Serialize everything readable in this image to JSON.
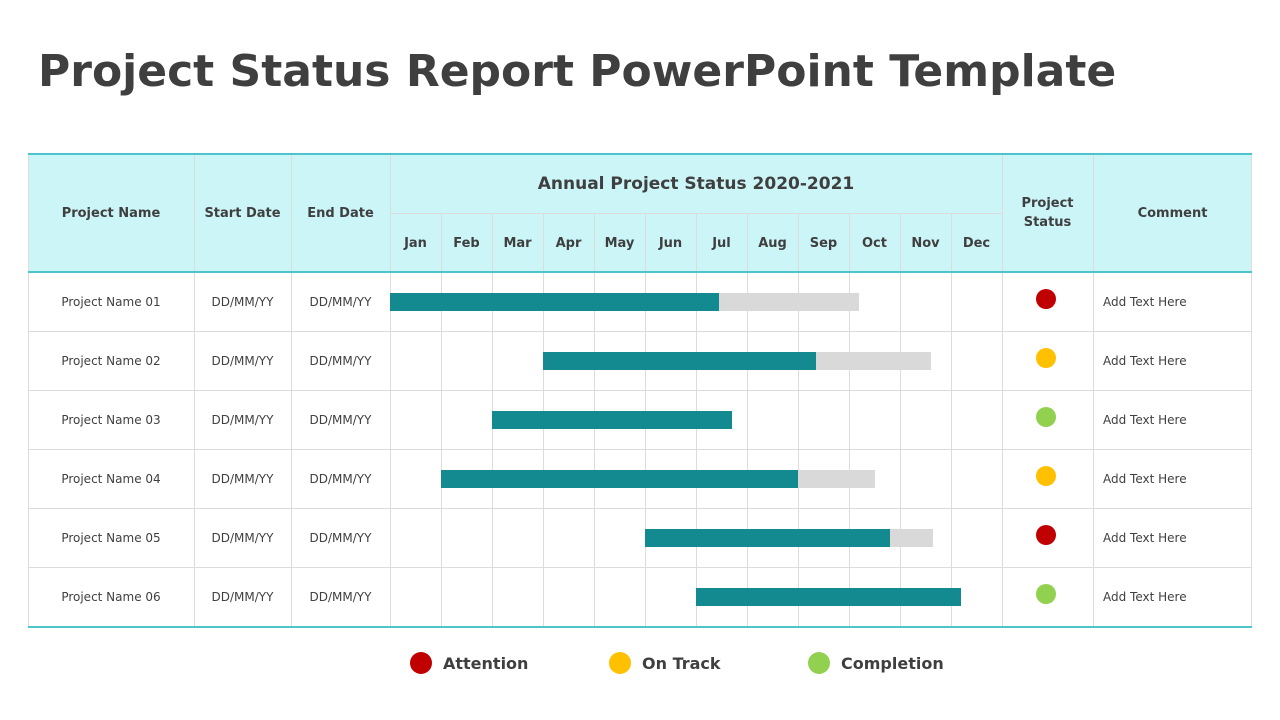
{
  "title": "Project Status Report PowerPoint Template",
  "table": {
    "headers": {
      "project_name": "Project Name",
      "start_date": "Start Date",
      "end_date": "End Date",
      "annual": "Annual Project Status 2020-2021",
      "status_line1": "Project",
      "status_line2": "Status",
      "comment": "Comment"
    },
    "months": [
      "Jan",
      "Feb",
      "Mar",
      "Apr",
      "May",
      "Jun",
      "Jul",
      "Aug",
      "Sep",
      "Oct",
      "Nov",
      "Dec"
    ],
    "rows": [
      {
        "name": "Project Name 01",
        "start": "DD/MM/YY",
        "end": "DD/MM/YY",
        "status": "attention",
        "comment": "Add Text Here"
      },
      {
        "name": "Project Name 02",
        "start": "DD/MM/YY",
        "end": "DD/MM/YY",
        "status": "on_track",
        "comment": "Add Text Here"
      },
      {
        "name": "Project Name 03",
        "start": "DD/MM/YY",
        "end": "DD/MM/YY",
        "status": "completion",
        "comment": "Add Text Here"
      },
      {
        "name": "Project Name 04",
        "start": "DD/MM/YY",
        "end": "DD/MM/YY",
        "status": "on_track",
        "comment": "Add Text Here"
      },
      {
        "name": "Project Name 05",
        "start": "DD/MM/YY",
        "end": "DD/MM/YY",
        "status": "attention",
        "comment": "Add Text Here"
      },
      {
        "name": "Project Name 06",
        "start": "DD/MM/YY",
        "end": "DD/MM/YY",
        "status": "completion",
        "comment": "Add Text Here"
      }
    ]
  },
  "chart_data": {
    "type": "bar",
    "orientation": "horizontal-gantt",
    "title": "Annual Project Status 2020-2021",
    "categories": [
      "Project Name 01",
      "Project Name 02",
      "Project Name 03",
      "Project Name 04",
      "Project Name 05",
      "Project Name 06"
    ],
    "x_ticks": [
      "Jan",
      "Feb",
      "Mar",
      "Apr",
      "May",
      "Jun",
      "Jul",
      "Aug",
      "Sep",
      "Oct",
      "Nov",
      "Dec"
    ],
    "xlim": [
      0,
      12
    ],
    "grid": true,
    "series": [
      {
        "start": [
          0.0,
          3.0,
          2.0,
          1.0,
          5.0,
          6.0
        ],
        "end": [
          6.45,
          8.35,
          6.7,
          8.0,
          9.8,
          11.2
        ],
        "color": "#138a8f"
      },
      {
        "start": [
          6.45,
          8.35,
          6.7,
          8.0,
          9.8,
          11.2
        ],
        "end": [
          9.2,
          10.6,
          6.7,
          9.5,
          10.65,
          11.2
        ],
        "color": "#d9d9d9"
      }
    ]
  },
  "legend": [
    {
      "key": "attention",
      "label": "Attention",
      "color": "#c00000"
    },
    {
      "key": "on_track",
      "label": "On Track",
      "color": "#ffc000"
    },
    {
      "key": "completion",
      "label": "Completion",
      "color": "#92d050"
    }
  ],
  "colors": {
    "header_bg": "#ccf5f8",
    "accent_line": "#4cc4cb",
    "progress": "#138a8f",
    "remaining": "#d9d9d9"
  }
}
